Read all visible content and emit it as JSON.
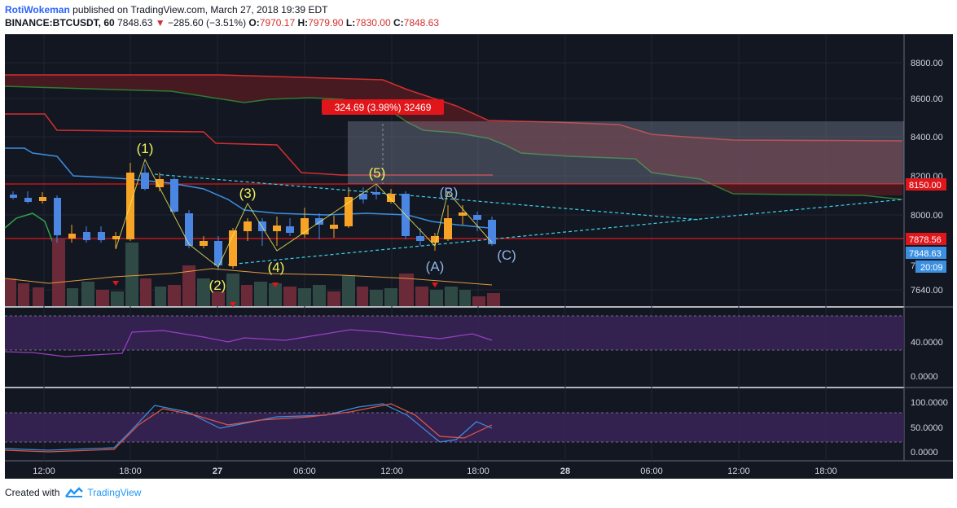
{
  "header": {
    "author": "RotiWokeman",
    "published_text": "published on TradingView.com, March 27, 2018 19:39 EDT",
    "symbol": "BINANCE:BTCUSDT, 60",
    "last": "7848.63",
    "change_arrow": "▼",
    "change": "−285.60 (−3.51%)",
    "o_label": "O:",
    "o_val": "7970.17",
    "h_label": "H:",
    "h_val": "7979.90",
    "l_label": "L:",
    "l_val": "7830.00",
    "c_label": "C:",
    "c_val": "7848.63"
  },
  "colors": {
    "background": "#131722",
    "up": "#f7a325",
    "down": "#4b86e3",
    "wave": "#f0f05a",
    "wave_b": "#8fb4e3",
    "measure": "#e0161b",
    "cyan": "#3ed3e8",
    "purple": "#4a2c6e"
  },
  "price_axis": {
    "labels": [
      "8800.00",
      "8600.00",
      "8400.00",
      "8200.00",
      "8000.00",
      "7640.00"
    ],
    "marker_8150": "8150.00",
    "marker_7878": "7878.56",
    "marker_last": "7848.63",
    "marker_time": "20:09",
    "marker_partial": "7"
  },
  "rsi_axis": {
    "labels": [
      "40.0000",
      "0.0000"
    ]
  },
  "stoch_axis": {
    "labels": [
      "100.0000",
      "50.0000",
      "0.0000"
    ]
  },
  "time_axis": {
    "labels": [
      "12:00",
      "18:00",
      "27",
      "06:00",
      "12:00",
      "18:00",
      "28",
      "06:00",
      "12:00",
      "18:00"
    ]
  },
  "measure_label": "324.69 (3.98%) 32469",
  "wave_labels": {
    "w1": "(1)",
    "w2": "(2)",
    "w3": "(3)",
    "w4": "(4)",
    "w5": "(5)",
    "wa": "(A)",
    "wb": "(B)",
    "wc": "(C)"
  },
  "footer": {
    "created_with": "Created with",
    "brand": "TradingView"
  },
  "chart_data": {
    "type": "candlestick",
    "symbol": "BINANCE:BTCUSDT",
    "interval": "60",
    "last_price": 7848.63,
    "horizontal_levels": [
      8150.0,
      7878.56
    ],
    "measure": {
      "change": 324.69,
      "change_pct": 3.98
    },
    "wave_labels": [
      "(1)",
      "(2)",
      "(3)",
      "(4)",
      "(5)",
      "(A)",
      "(B)",
      "(C)"
    ]
  }
}
